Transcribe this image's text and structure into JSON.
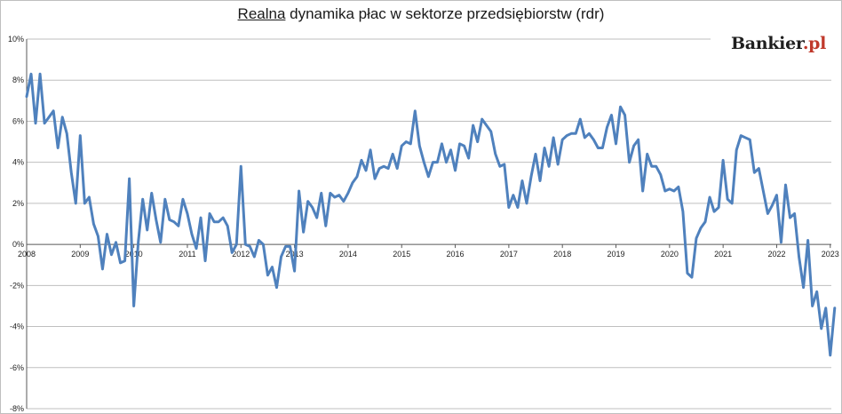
{
  "title_underlined": "Realna",
  "title_rest": " dynamika płac w sektorze przedsiębiorstw (rdr)",
  "brand": {
    "name": "Bankier",
    "suffix": ".pl"
  },
  "colors": {
    "line": "#4f81bd",
    "grid": "#bfbfbf",
    "axis": "#595959"
  },
  "chart_data": {
    "type": "line",
    "title": "Realna dynamika płac w sektorze przedsiębiorstw (rdr)",
    "xlabel": "",
    "ylabel": "",
    "x_start": 2008.0,
    "x_step_years": 0.08333,
    "xlim": [
      2008,
      2023.02
    ],
    "ylim": [
      -8,
      10
    ],
    "y_ticks": [
      10,
      8,
      6,
      4,
      2,
      0,
      -2,
      -4,
      -6,
      -8
    ],
    "y_tick_labels": [
      "10%",
      "8%",
      "6%",
      "4%",
      "2%",
      "0%",
      "-2%",
      "-4%",
      "-6%",
      "-8%"
    ],
    "x_tick_labels": [
      "2008",
      "2009",
      "2010",
      "2011",
      "2012",
      "2013",
      "2014",
      "2015",
      "2016",
      "2017",
      "2018",
      "2019",
      "2020",
      "2021",
      "2022",
      "2023"
    ],
    "grid": true,
    "legend": "none",
    "series": [
      {
        "values": [
          7.2,
          8.3,
          5.9,
          8.3,
          5.9,
          6.2,
          6.5,
          4.7,
          6.2,
          5.4,
          3.5,
          2.0,
          5.3,
          2.0,
          2.3,
          1.0,
          0.4,
          -1.2,
          0.5,
          -0.5,
          0.1,
          -0.9,
          -0.8,
          3.2,
          -3.0,
          0.1,
          2.2,
          0.7,
          2.5,
          1.2,
          0.1,
          2.2,
          1.2,
          1.1,
          0.9,
          2.2,
          1.5,
          0.5,
          -0.2,
          1.3,
          -0.8,
          1.5,
          1.1,
          1.1,
          1.3,
          0.9,
          -0.4,
          0.0,
          3.8,
          0.0,
          -0.1,
          -0.6,
          0.2,
          0.0,
          -1.5,
          -1.1,
          -2.1,
          -0.6,
          -0.1,
          -0.1,
          -1.3,
          2.6,
          0.6,
          2.1,
          1.8,
          1.3,
          2.5,
          0.9,
          2.5,
          2.3,
          2.4,
          2.1,
          2.5,
          3.0,
          3.3,
          4.1,
          3.6,
          4.6,
          3.2,
          3.7,
          3.8,
          3.7,
          4.4,
          3.7,
          4.8,
          5.0,
          4.9,
          6.5,
          4.8,
          4.0,
          3.3,
          4.0,
          4.0,
          4.9,
          4.0,
          4.6,
          3.6,
          4.9,
          4.8,
          4.2,
          5.8,
          5.0,
          6.1,
          5.8,
          5.5,
          4.4,
          3.8,
          3.9,
          1.8,
          2.4,
          1.8,
          3.1,
          2.0,
          3.3,
          4.4,
          3.1,
          4.7,
          3.8,
          5.2,
          3.9,
          5.1,
          5.3,
          5.4,
          5.4,
          6.1,
          5.2,
          5.4,
          5.1,
          4.7,
          4.7,
          5.7,
          6.3,
          4.9,
          6.7,
          6.3,
          4.0,
          4.8,
          5.1,
          2.6,
          4.4,
          3.8,
          3.8,
          3.4,
          2.6,
          2.7,
          2.6,
          2.8,
          1.6,
          -1.4,
          -1.6,
          0.3,
          0.8,
          1.1,
          2.3,
          1.6,
          1.8,
          4.1,
          2.2,
          2.0,
          4.6,
          5.3,
          5.2,
          5.1,
          3.5,
          3.7,
          2.6,
          1.5,
          1.9,
          2.4,
          0.1,
          2.9,
          1.3,
          1.5,
          -0.6,
          -2.1,
          0.2,
          -3.0,
          -2.3,
          -4.1,
          -3.1,
          -5.4,
          -3.1
        ]
      }
    ]
  }
}
